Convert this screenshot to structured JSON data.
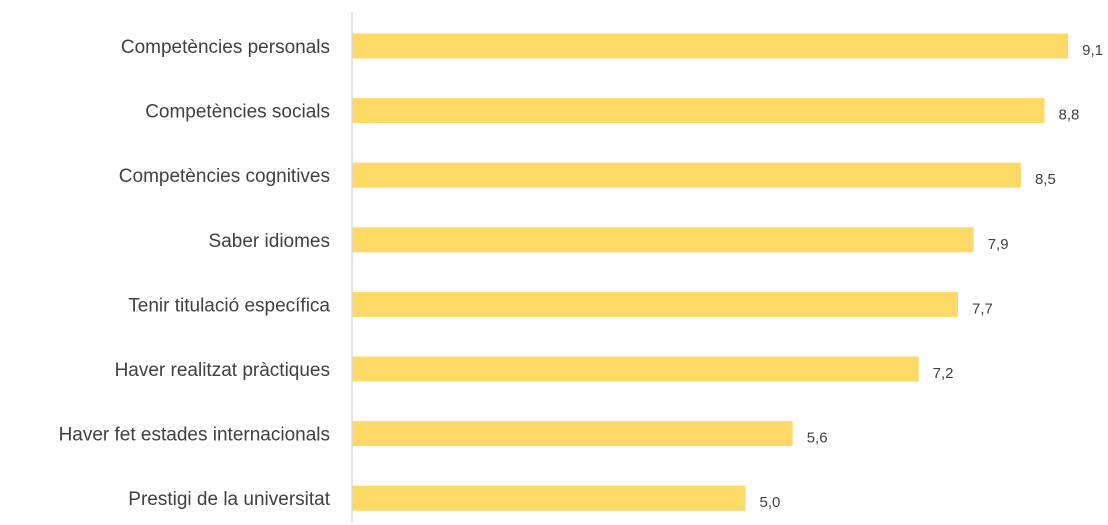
{
  "chart_data": {
    "type": "bar",
    "orientation": "horizontal",
    "categories": [
      "Competències personals",
      "Competències socials",
      "Competències cognitives",
      "Saber idiomes",
      "Tenir titulació específica",
      "Haver realitzat pràctiques",
      "Haver fet estades internacionals",
      "Prestigi de la universitat"
    ],
    "values": [
      9.1,
      8.8,
      8.5,
      7.9,
      7.7,
      7.2,
      5.6,
      5.0
    ],
    "value_labels": [
      "9,1",
      "8,8",
      "8,5",
      "7,9",
      "7,7",
      "7,2",
      "5,6",
      "5,0"
    ],
    "xlim": [
      0,
      10
    ],
    "grid": false,
    "legend": "none",
    "title": "",
    "xlabel": "",
    "ylabel": "",
    "colors": {
      "bar": "#FFD966",
      "axis": "#D9D9D9",
      "text": "#404040"
    }
  }
}
